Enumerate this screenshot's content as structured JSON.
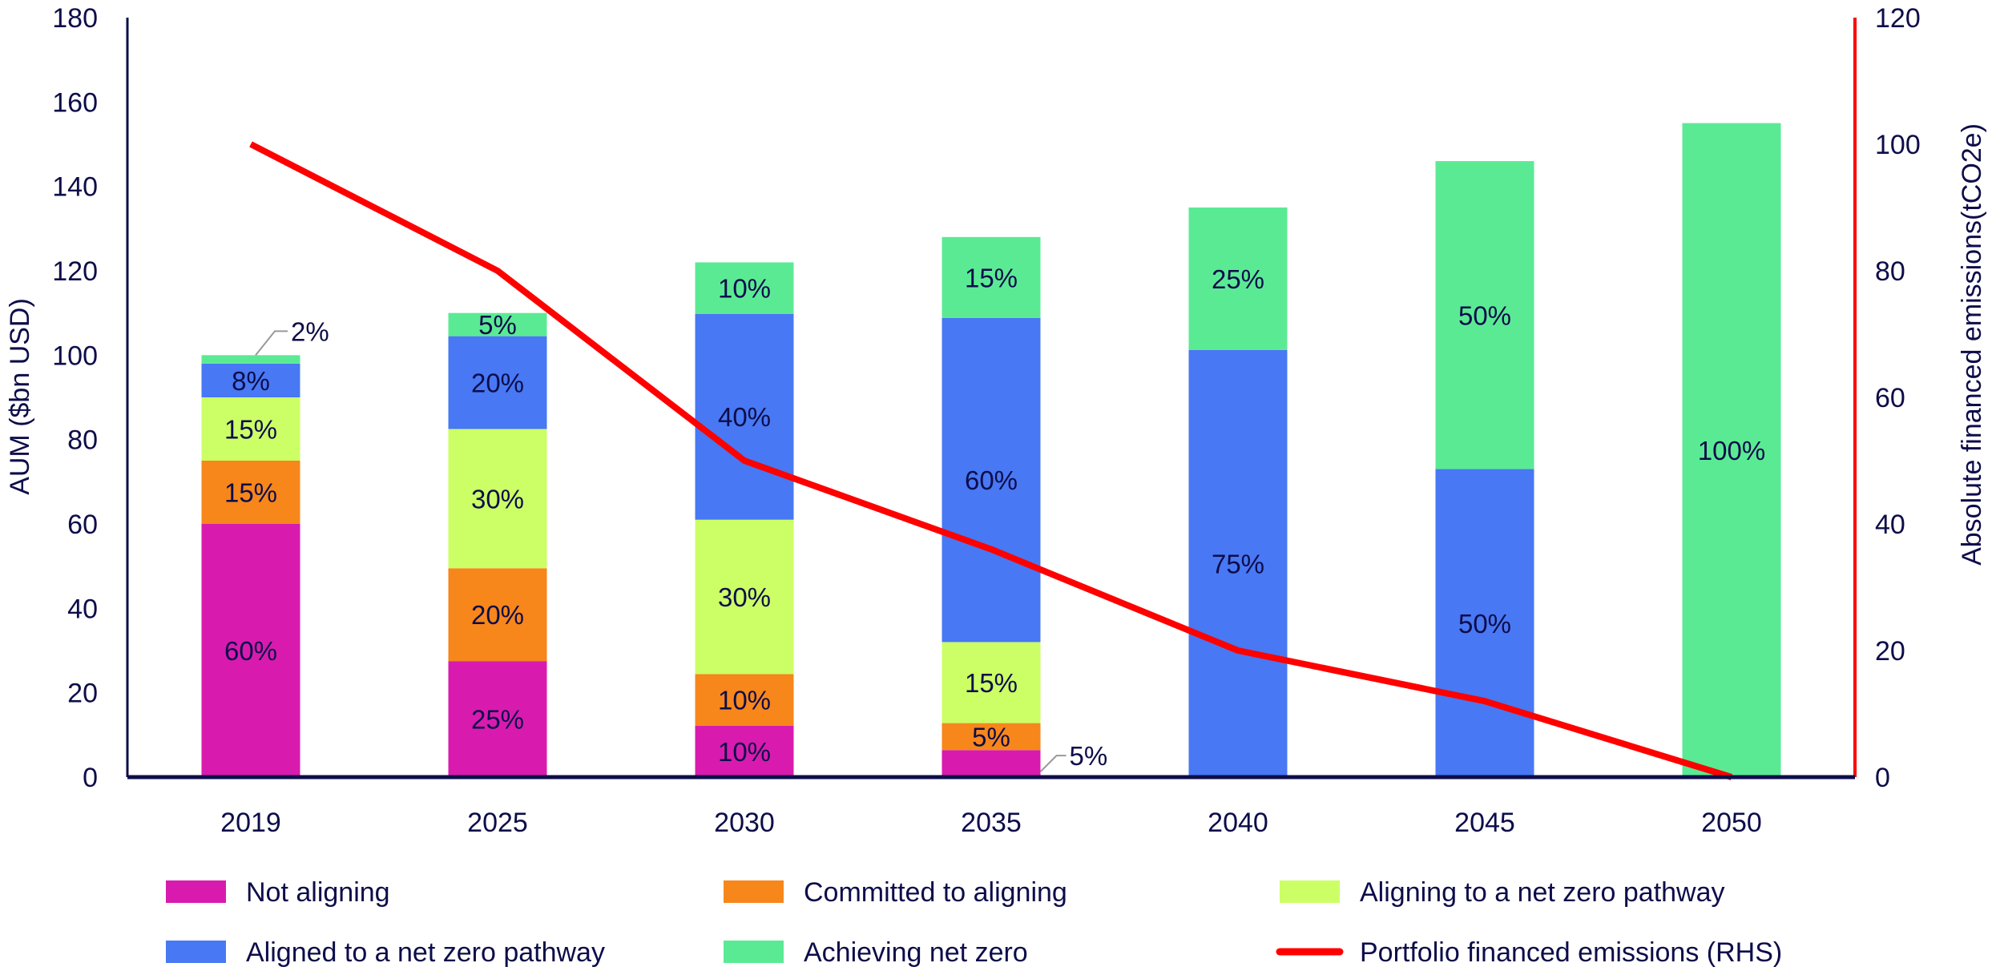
{
  "chart_data": {
    "type": "bar",
    "stacked": true,
    "categories": [
      "2019",
      "2025",
      "2030",
      "2035",
      "2040",
      "2045",
      "2050"
    ],
    "totals": [
      100,
      110,
      122,
      128,
      135,
      146,
      155
    ],
    "series": [
      {
        "name": "Not aligning",
        "color": "#D81BAE",
        "values": [
          60,
          27.5,
          12.2,
          6.4,
          0,
          0,
          0
        ],
        "labels": [
          "60%",
          "25%",
          "10%",
          "5%",
          "",
          "",
          ""
        ]
      },
      {
        "name": "Committed to aligning",
        "color": "#F7861B",
        "values": [
          15,
          22,
          12.2,
          6.4,
          0,
          0,
          0
        ],
        "labels": [
          "15%",
          "20%",
          "10%",
          "5%",
          "",
          "",
          ""
        ]
      },
      {
        "name": "Aligning to a net zero pathway",
        "color": "#CCFF66",
        "values": [
          15,
          33,
          36.6,
          19.2,
          0,
          0,
          0
        ],
        "labels": [
          "15%",
          "30%",
          "30%",
          "15%",
          "",
          "",
          ""
        ]
      },
      {
        "name": "Aligned to a net zero pathway",
        "color": "#4878F3",
        "values": [
          8,
          22,
          48.8,
          76.8,
          101.25,
          73,
          0
        ],
        "labels": [
          "8%",
          "20%",
          "40%",
          "60%",
          "75%",
          "50%",
          ""
        ]
      },
      {
        "name": "Achieving net zero",
        "color": "#5BEA94",
        "values": [
          2,
          5.5,
          12.2,
          19.2,
          33.75,
          73,
          155
        ],
        "labels": [
          "2%",
          "5%",
          "10%",
          "15%",
          "25%",
          "50%",
          "100%"
        ]
      }
    ],
    "line_series": {
      "name": "Portfolio financed emissions (RHS)",
      "color": "#FF0000",
      "axis": "right",
      "values": [
        100,
        80,
        50,
        36,
        20,
        12,
        0
      ]
    },
    "callouts": [
      {
        "category": "2019",
        "text": "2%"
      },
      {
        "category": "2035",
        "text": "5%"
      }
    ],
    "ylabel": "AUM ($bn USD)",
    "ylabel_right": "Absolute financed emissions(tCO2e)",
    "ylim": [
      0,
      180
    ],
    "yticks": [
      "0",
      "20",
      "40",
      "60",
      "80",
      "100",
      "120",
      "140",
      "160",
      "180"
    ],
    "ylim_right": [
      0,
      120
    ],
    "yticks_right": [
      "0",
      "20",
      "40",
      "60",
      "80",
      "100",
      "120"
    ],
    "grid": false,
    "legend_position": "bottom"
  }
}
